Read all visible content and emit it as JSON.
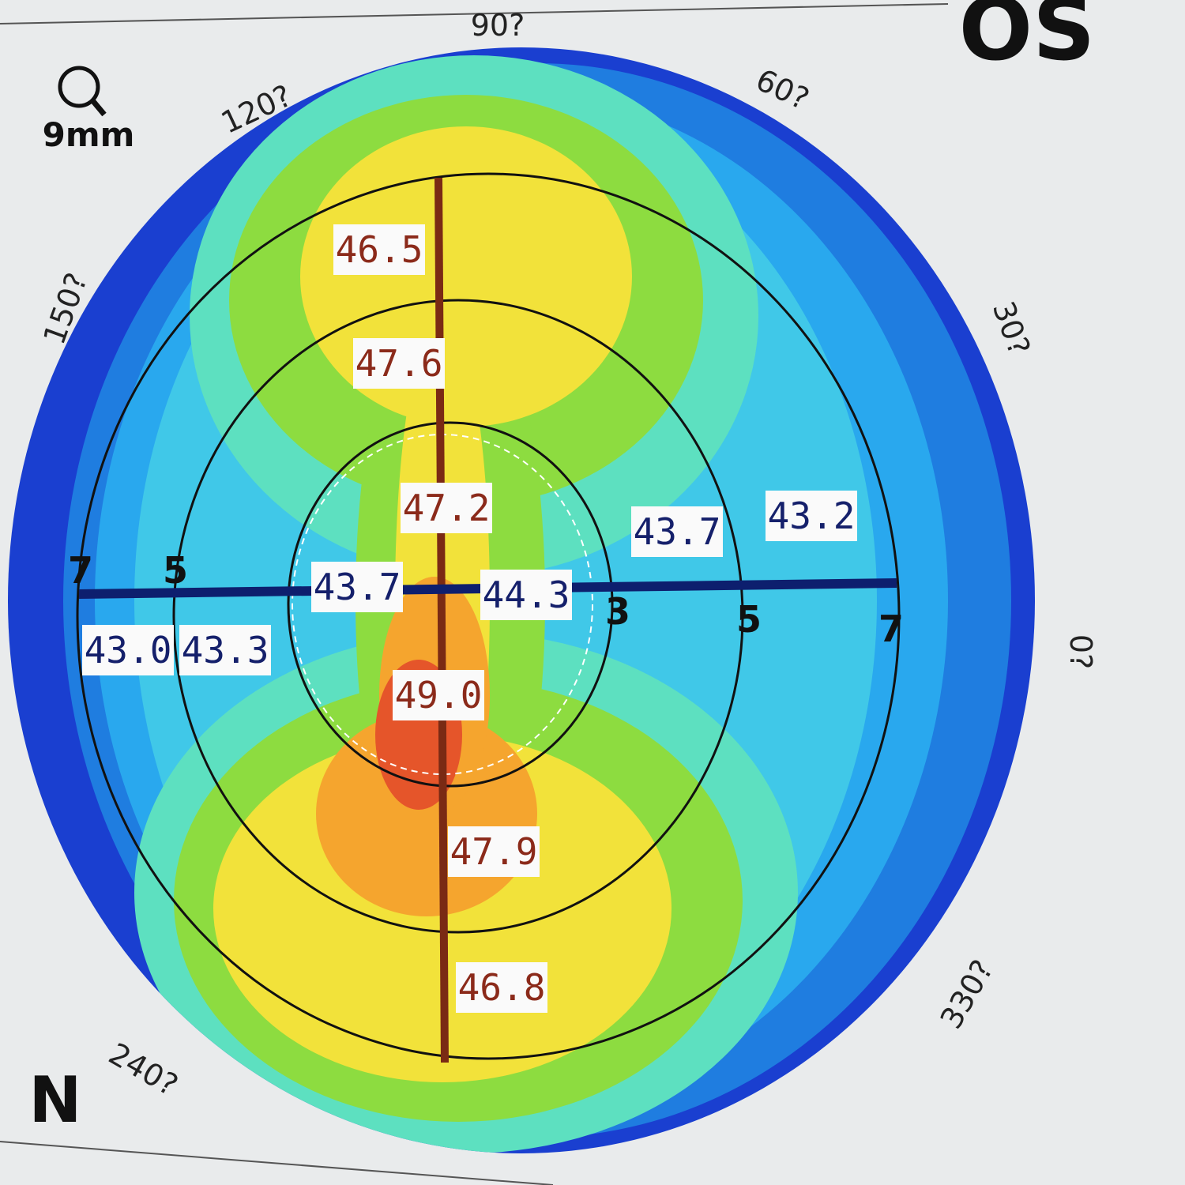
{
  "header": {
    "eye": "OS",
    "zoom": "9mm",
    "orientation": "N"
  },
  "angle_labels": [
    "90?",
    "60?",
    "120?",
    "150?",
    "30?",
    "0?",
    "330?",
    "240?"
  ],
  "ring_labels": {
    "left": [
      "7",
      "5"
    ],
    "right": [
      "3",
      "5",
      "7"
    ]
  },
  "vertical_readings": [
    "46.5",
    "47.6",
    "47.2",
    "49.0",
    "47.9",
    "46.8"
  ],
  "horizontal_readings": [
    "43.0",
    "43.3",
    "43.7",
    "44.3",
    "43.7",
    "43.2"
  ]
}
